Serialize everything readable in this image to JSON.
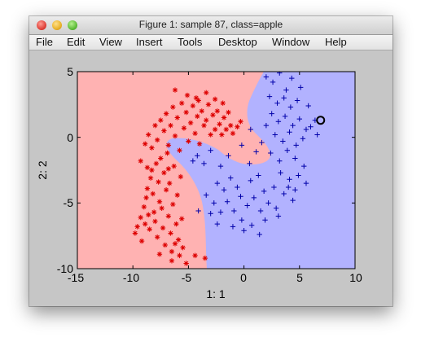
{
  "window": {
    "title": "Figure 1: sample 87, class=apple"
  },
  "menu": [
    "File",
    "Edit",
    "View",
    "Insert",
    "Tools",
    "Desktop",
    "Window",
    "Help"
  ],
  "colors": {
    "window_bg": "#c6c6c6",
    "region_red": "#ffb2b2",
    "region_blue": "#b2b2ff",
    "marker_red": "#dd0000",
    "marker_blue": "#0000aa"
  },
  "chart_data": {
    "type": "scatter",
    "title": "",
    "xlabel": "1: 1",
    "ylabel": "2: 2",
    "xlim": [
      -15,
      10
    ],
    "ylim": [
      -10,
      5
    ],
    "xticks": [
      "-15",
      "-10",
      "-5",
      "0",
      "5",
      "10"
    ],
    "yticks": [
      "5",
      "0",
      "-5",
      "-10"
    ],
    "grid": false,
    "highlighted_sample": {
      "x": 6.9,
      "y": 1.3
    },
    "series": [
      {
        "marker": "asterisk",
        "color": "#dd0000",
        "points": [
          [
            -9.8,
            -7.3
          ],
          [
            -9.6,
            -6.8
          ],
          [
            -9.3,
            -6.1
          ],
          [
            -9.2,
            -7.9
          ],
          [
            -9.0,
            -5.3
          ],
          [
            -8.9,
            -6.6
          ],
          [
            -8.8,
            -4.6
          ],
          [
            -8.7,
            -3.9
          ],
          [
            -8.6,
            -5.9
          ],
          [
            -8.5,
            -7.0
          ],
          [
            -8.4,
            -3.1
          ],
          [
            -8.3,
            -2.5
          ],
          [
            -8.2,
            -4.3
          ],
          [
            -8.1,
            -5.7
          ],
          [
            -8.0,
            -6.4
          ],
          [
            -7.9,
            -2.0
          ],
          [
            -7.8,
            -7.6
          ],
          [
            -7.7,
            -3.4
          ],
          [
            -7.6,
            -4.9
          ],
          [
            -7.5,
            -1.6
          ],
          [
            -7.4,
            -5.4
          ],
          [
            -7.3,
            -6.9
          ],
          [
            -7.2,
            -2.7
          ],
          [
            -7.1,
            -8.2
          ],
          [
            -7.0,
            -4.0
          ],
          [
            -6.9,
            -1.2
          ],
          [
            -6.8,
            -6.0
          ],
          [
            -6.7,
            -3.5
          ],
          [
            -6.6,
            -7.3
          ],
          [
            -6.5,
            -8.7
          ],
          [
            -6.4,
            -5.1
          ],
          [
            -6.3,
            -2.2
          ],
          [
            -6.2,
            -8.1
          ],
          [
            -6.1,
            -6.6
          ],
          [
            -6.0,
            -4.4
          ],
          [
            -5.9,
            -7.8
          ],
          [
            -5.8,
            -9.0
          ],
          [
            -5.7,
            -3.0
          ],
          [
            -5.6,
            -6.2
          ],
          [
            -5.5,
            -8.4
          ],
          [
            -8.9,
            -0.5
          ],
          [
            -8.6,
            0.2
          ],
          [
            -8.3,
            -0.8
          ],
          [
            -8.0,
            0.9
          ],
          [
            -7.8,
            -0.2
          ],
          [
            -7.5,
            1.3
          ],
          [
            -7.2,
            0.5
          ],
          [
            -7.0,
            1.8
          ],
          [
            -6.8,
            -0.6
          ],
          [
            -6.6,
            0.9
          ],
          [
            -6.4,
            2.3
          ],
          [
            -6.2,
            0.1
          ],
          [
            -6.0,
            1.5
          ],
          [
            -5.8,
            -1.0
          ],
          [
            -5.6,
            2.6
          ],
          [
            -5.4,
            0.7
          ],
          [
            -5.2,
            1.9
          ],
          [
            -5.0,
            -0.3
          ],
          [
            -4.8,
            1.1
          ],
          [
            -4.6,
            2.4
          ],
          [
            -4.4,
            0.3
          ],
          [
            -4.2,
            1.6
          ],
          [
            -4.0,
            -0.5
          ],
          [
            -3.8,
            2.0
          ],
          [
            -3.6,
            0.9
          ],
          [
            -3.4,
            1.3
          ],
          [
            -3.2,
            2.5
          ],
          [
            -3.0,
            0.2
          ],
          [
            -2.8,
            1.7
          ],
          [
            -2.6,
            0.6
          ],
          [
            -2.4,
            2.0
          ],
          [
            -2.2,
            1.0
          ],
          [
            -2.0,
            0.2
          ],
          [
            -1.8,
            1.5
          ],
          [
            -1.6,
            0.6
          ],
          [
            -1.4,
            1.9
          ],
          [
            -1.2,
            0.9
          ],
          [
            -1.0,
            0.3
          ],
          [
            -0.6,
            0.8
          ],
          [
            -6.2,
            3.6
          ],
          [
            -5.1,
            3.2
          ],
          [
            -4.3,
            3.0
          ],
          [
            -3.4,
            3.4
          ],
          [
            -2.6,
            2.9
          ],
          [
            -1.9,
            2.6
          ],
          [
            -9.3,
            -1.8
          ],
          [
            -8.7,
            -2.3
          ],
          [
            -6.8,
            -2.4
          ],
          [
            -5.2,
            -9.6
          ],
          [
            -3.5,
            -9.2
          ],
          [
            -6.5,
            -9.4
          ],
          [
            -7.6,
            -8.9
          ],
          [
            -4.1,
            2.8
          ],
          [
            -0.3,
            1.2
          ],
          [
            -4.4,
            -9.0
          ]
        ]
      },
      {
        "marker": "plus",
        "color": "#0000aa",
        "points": [
          [
            2.0,
            4.6
          ],
          [
            2.6,
            4.2
          ],
          [
            3.2,
            4.9
          ],
          [
            3.8,
            3.6
          ],
          [
            4.3,
            4.5
          ],
          [
            2.3,
            3.1
          ],
          [
            3.0,
            2.6
          ],
          [
            3.6,
            3.0
          ],
          [
            4.2,
            2.3
          ],
          [
            4.8,
            2.8
          ],
          [
            2.5,
            1.8
          ],
          [
            3.1,
            1.2
          ],
          [
            3.7,
            1.6
          ],
          [
            4.4,
            0.9
          ],
          [
            5.0,
            1.4
          ],
          [
            5.6,
            0.6
          ],
          [
            2.8,
            0.2
          ],
          [
            3.5,
            -0.3
          ],
          [
            4.1,
            0.4
          ],
          [
            4.7,
            -0.6
          ],
          [
            5.3,
            -0.1
          ],
          [
            6.0,
            0.8
          ],
          [
            6.4,
            1.3
          ],
          [
            6.6,
            0.2
          ],
          [
            2.4,
            -1.2
          ],
          [
            3.2,
            -1.8
          ],
          [
            3.9,
            -1.0
          ],
          [
            4.6,
            -1.6
          ],
          [
            5.4,
            -2.2
          ],
          [
            3.3,
            -2.7
          ],
          [
            4.1,
            -3.2
          ],
          [
            4.9,
            -2.9
          ],
          [
            5.6,
            -3.5
          ],
          [
            2.7,
            -3.8
          ],
          [
            3.6,
            -4.3
          ],
          [
            4.4,
            -4.8
          ],
          [
            1.8,
            -4.1
          ],
          [
            2.2,
            -5.0
          ],
          [
            1.5,
            -5.6
          ],
          [
            2.9,
            -5.4
          ],
          [
            0.9,
            -4.6
          ],
          [
            0.3,
            -5.2
          ],
          [
            -0.3,
            -4.5
          ],
          [
            -0.9,
            -5.6
          ],
          [
            -1.5,
            -4.9
          ],
          [
            -2.1,
            -5.7
          ],
          [
            -2.7,
            -5.0
          ],
          [
            -0.6,
            -3.8
          ],
          [
            0.6,
            -3.3
          ],
          [
            1.3,
            -2.9
          ],
          [
            -1.2,
            -3.1
          ],
          [
            -1.8,
            -4.0
          ],
          [
            -2.4,
            -3.5
          ],
          [
            -3.4,
            -4.4
          ],
          [
            -4.1,
            -5.6
          ],
          [
            -3.0,
            -5.8
          ],
          [
            -0.2,
            -6.3
          ],
          [
            0.7,
            -6.7
          ],
          [
            -1.0,
            -6.8
          ],
          [
            1.9,
            -6.3
          ],
          [
            -4.2,
            -1.4
          ],
          [
            -3.6,
            -2.0
          ],
          [
            -4.6,
            -1.8
          ],
          [
            -3.0,
            -1.0
          ],
          [
            -2.1,
            -2.2
          ],
          [
            -1.4,
            -1.4
          ],
          [
            0.5,
            -2.0
          ],
          [
            1.1,
            -1.1
          ],
          [
            -0.2,
            -0.6
          ],
          [
            0.6,
            0.6
          ],
          [
            1.6,
            -0.4
          ],
          [
            2.0,
            0.9
          ],
          [
            5.8,
            2.4
          ],
          [
            5.1,
            3.8
          ],
          [
            4.6,
            -4.0
          ],
          [
            3.1,
            -6.0
          ],
          [
            0.0,
            -7.1
          ],
          [
            -2.4,
            -6.6
          ],
          [
            1.4,
            -7.4
          ],
          [
            4.0,
            -3.8
          ]
        ]
      }
    ]
  }
}
